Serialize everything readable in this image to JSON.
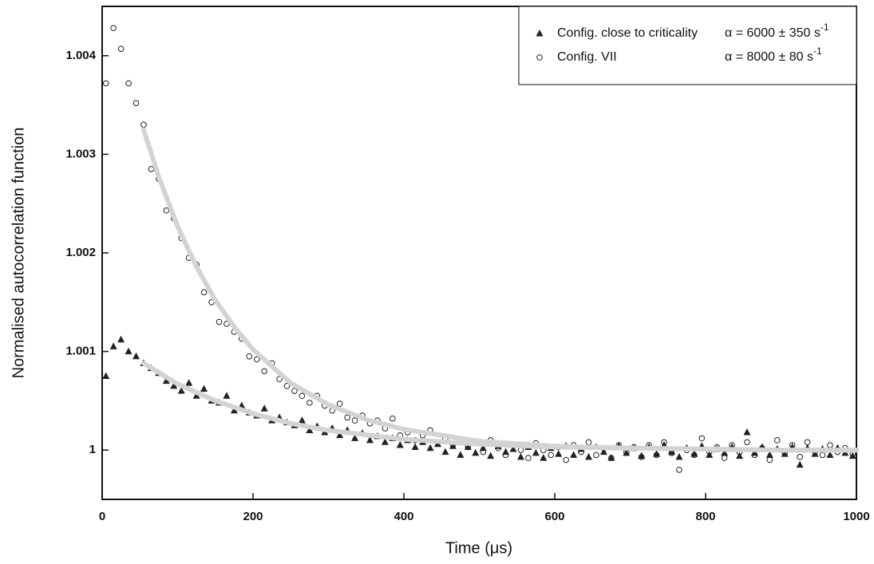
{
  "chart_data": {
    "type": "scatter",
    "xlabel": "Time (μs)",
    "ylabel": "Normalised autocorrelation function",
    "xlim": [
      0,
      1000
    ],
    "xticks": [
      0,
      200,
      400,
      600,
      800,
      1000
    ],
    "ylim": [
      0.9995,
      1.0045
    ],
    "yticks": [
      1,
      1.001,
      1.002,
      1.003,
      1.004
    ],
    "fit_color": "#d3d3d3",
    "x": [
      5,
      15,
      25,
      35,
      45,
      55,
      65,
      75,
      85,
      95,
      105,
      115,
      125,
      135,
      145,
      155,
      165,
      175,
      185,
      195,
      205,
      215,
      225,
      235,
      245,
      255,
      265,
      275,
      285,
      295,
      305,
      315,
      325,
      335,
      345,
      355,
      365,
      375,
      385,
      395,
      405,
      415,
      425,
      435,
      445,
      455,
      465,
      475,
      485,
      495,
      505,
      515,
      525,
      535,
      545,
      555,
      565,
      575,
      585,
      595,
      605,
      615,
      625,
      635,
      645,
      655,
      665,
      675,
      685,
      695,
      705,
      715,
      725,
      735,
      745,
      755,
      765,
      775,
      785,
      795,
      805,
      815,
      825,
      835,
      845,
      855,
      865,
      875,
      885,
      895,
      905,
      915,
      925,
      935,
      945,
      955,
      965,
      975,
      985,
      995
    ],
    "series": [
      {
        "name": "Config. VII",
        "marker": "circle",
        "color": "#222222",
        "label": "α = 8000 ±  80 s",
        "label_sup": "-1",
        "values": [
          1.00372,
          1.00428,
          1.00407,
          1.00372,
          1.00352,
          1.0033,
          1.00285,
          1.00275,
          1.00243,
          1.00235,
          1.00215,
          1.00195,
          1.00188,
          1.0016,
          1.0015,
          1.0013,
          1.00128,
          1.0012,
          1.00113,
          1.00095,
          1.00092,
          1.0008,
          1.00088,
          1.00072,
          1.00065,
          1.0006,
          1.00055,
          1.00048,
          1.00055,
          1.00045,
          1.0004,
          1.00047,
          1.00033,
          1.0003,
          1.00035,
          1.00027,
          1.0003,
          1.00022,
          1.00032,
          1.00015,
          1.00018,
          1.0001,
          1.00015,
          1.0002,
          1.00008,
          1.00012,
          1.00005,
          1.0001,
          1.00003,
          1.00008,
          0.99998,
          1.0001,
          1.00002,
          0.99995,
          1.00005,
          1,
          0.99992,
          1.00007,
          1,
          0.99995,
          1.00003,
          0.9999,
          1.00005,
          0.99998,
          1.00008,
          0.99995,
          1.00002,
          0.99992,
          1.00005,
          0.99998,
          1.00003,
          0.99993,
          1.00005,
          0.99995,
          1.00008,
          0.99997,
          0.9998,
          1,
          0.99995,
          1.00012,
          0.99998,
          1.00003,
          0.99992,
          1.00005,
          0.99998,
          1.00008,
          0.99995,
          1.00002,
          0.9999,
          1.0001,
          0.99997,
          1.00005,
          0.99993,
          1.00008,
          0.99998,
          0.99995,
          1.00005,
          0.99998,
          1.00002,
          0.99996
        ],
        "fit": {
          "x": [
            55,
            75,
            100,
            125,
            150,
            175,
            200,
            250,
            300,
            350,
            400,
            500,
            600,
            700,
            800,
            900,
            1000
          ],
          "values": [
            1.00325,
            1.00277,
            1.00227,
            1.00186,
            1.00152,
            1.00125,
            1.00102,
            1.00068,
            1.00046,
            1.00031,
            1.00021,
            1.00009,
            1.00004,
            1.00002,
            1.00001,
            1,
            1
          ]
        }
      },
      {
        "name": "Config. close to criticality",
        "marker": "triangle",
        "color": "#222222",
        "label": "α = 6000 ±  350 s",
        "label_sup": "-1",
        "values": [
          1.00075,
          1.00105,
          1.00112,
          1.001,
          1.00095,
          1.00088,
          1.00083,
          1.00078,
          1.0007,
          1.00065,
          1.0006,
          1.00068,
          1.00055,
          1.00062,
          1.0005,
          1.00048,
          1.00055,
          1.0004,
          1.00045,
          1.00038,
          1.00035,
          1.00042,
          1.0003,
          1.00033,
          1.00028,
          1.00025,
          1.0003,
          1.0002,
          1.00024,
          1.00018,
          1.00022,
          1.00015,
          1.0002,
          1.00012,
          1.00017,
          1.0001,
          1.00014,
          1.00008,
          1.00012,
          1.00005,
          1.0001,
          1.00003,
          1.00008,
          1.00002,
          1.00006,
          0.99998,
          1.00004,
          0.99995,
          1.00003,
          0.99997,
          1.00002,
          0.99994,
          1.00004,
          0.99998,
          1.00001,
          0.99993,
          1.00003,
          0.99997,
          0.99992,
          1.00002,
          0.99996,
          1.00004,
          0.99995,
          1.00001,
          0.99993,
          1.00003,
          0.99998,
          0.99992,
          1.00004,
          0.99997,
          1.00002,
          0.99994,
          1.00003,
          0.99996,
          1.00005,
          0.99998,
          0.99993,
          1.00002,
          0.99996,
          1.00004,
          0.99995,
          1.00001,
          0.99997,
          1.00003,
          0.99994,
          1.00018,
          0.99997,
          1.00003,
          0.99995,
          1.00001,
          0.99996,
          1.00003,
          0.99985,
          1.00002,
          0.99996,
          1.00001,
          0.99995,
          1.00002,
          0.99997,
          0.99994
        ],
        "fit": {
          "x": [
            55,
            100,
            150,
            200,
            250,
            300,
            400,
            500,
            600,
            700,
            800,
            900,
            1000
          ],
          "values": [
            1.00088,
            1.00067,
            1.0005,
            1.00037,
            1.00027,
            1.0002,
            1.00011,
            1.00006,
            1.00003,
            1.00002,
            1.00001,
            1,
            1
          ]
        }
      }
    ]
  }
}
